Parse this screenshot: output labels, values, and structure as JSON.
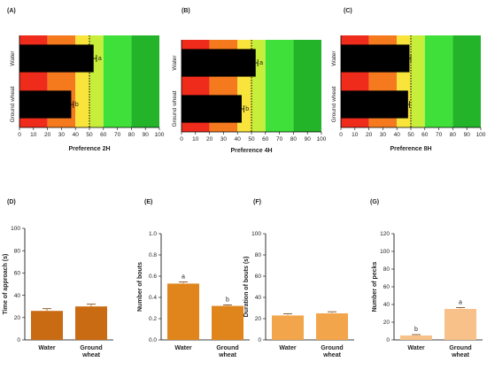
{
  "colors": {
    "pref_zones": [
      "#ef2b1b",
      "#f57a1e",
      "#f9e43b",
      "#c6ee3a",
      "#3fe03a",
      "#23b42a"
    ],
    "pref_bar": "#000000",
    "bar_D": "#c96b12",
    "bar_E": "#e0851c",
    "bar_F": "#f2a54a",
    "bar_G": "#f7c189",
    "cutoff": "#000000"
  },
  "chart_data": [
    {
      "panel": "(A)",
      "type": "bar",
      "orientation": "horizontal",
      "categories": [
        "Water",
        "Ground wheat"
      ],
      "values": [
        53,
        37
      ],
      "errors": [
        2,
        1.5
      ],
      "significance": [
        "a",
        "b"
      ],
      "xlabel": "Preference 2H",
      "xlim": [
        0,
        100
      ],
      "xticks": [
        "0",
        "10",
        "20",
        "30",
        "40",
        "50",
        "60",
        "70",
        "80",
        "90",
        "100"
      ],
      "zones": [
        0,
        20,
        40,
        50,
        60,
        80,
        100
      ],
      "cutoff_line": 50
    },
    {
      "panel": "(B)",
      "type": "bar",
      "orientation": "horizontal",
      "categories": [
        "Water",
        "Ground wheat"
      ],
      "values": [
        53,
        43
      ],
      "errors": [
        1.5,
        1.5
      ],
      "significance": [
        "a",
        "b"
      ],
      "xlabel": "Preference 4H",
      "xlim": [
        0,
        100
      ],
      "xticks": [
        "0",
        "10",
        "20",
        "30",
        "40",
        "50",
        "60",
        "70",
        "80",
        "90",
        "100"
      ],
      "zones": [
        0,
        20,
        40,
        50,
        60,
        80,
        100
      ],
      "cutoff_line": 50
    },
    {
      "panel": "(C)",
      "type": "bar",
      "orientation": "horizontal",
      "categories": [
        "Water",
        "Ground wheat"
      ],
      "values": [
        49,
        48
      ],
      "errors": [
        1,
        1
      ],
      "significance": [
        "",
        ""
      ],
      "xlabel": "Preference 8H",
      "xlim": [
        0,
        100
      ],
      "xticks": [
        "0",
        "10",
        "20",
        "30",
        "40",
        "50",
        "60",
        "70",
        "80",
        "90",
        "100"
      ],
      "zones": [
        0,
        20,
        40,
        50,
        60,
        80,
        100
      ],
      "cutoff_line": 50
    },
    {
      "panel": "(D)",
      "type": "bar",
      "categories": [
        "Water",
        "Ground\nwheat"
      ],
      "values": [
        26,
        30
      ],
      "errors": [
        2,
        2
      ],
      "significance": [
        "",
        ""
      ],
      "ylabel": "Time of approach (s)",
      "ylim": [
        0,
        100
      ],
      "yticks": [
        "0",
        "20",
        "40",
        "60",
        "80",
        "100"
      ]
    },
    {
      "panel": "(E)",
      "type": "bar",
      "categories": [
        "Water",
        "Ground\nwheat"
      ],
      "values": [
        0.53,
        0.32
      ],
      "errors": [
        0.015,
        0.01
      ],
      "significance": [
        "a",
        "b"
      ],
      "ylabel": "Number of bouts",
      "ylim": [
        0,
        1.0
      ],
      "yticks": [
        "0.0",
        "0.2",
        "0.4",
        "0.6",
        "0.8",
        "1.0"
      ]
    },
    {
      "panel": "(F)",
      "type": "bar",
      "categories": [
        "Water",
        "Ground\nwheat"
      ],
      "values": [
        23,
        25
      ],
      "errors": [
        1.5,
        1.5
      ],
      "significance": [
        "",
        ""
      ],
      "ylabel": "Duration of bouts (s)",
      "ylim": [
        0,
        100
      ],
      "yticks": [
        "0",
        "20",
        "40",
        "60",
        "80",
        "100"
      ]
    },
    {
      "panel": "(G)",
      "type": "bar",
      "categories": [
        "Water",
        "Ground\nwheat"
      ],
      "values": [
        5,
        35
      ],
      "errors": [
        1,
        1.5
      ],
      "significance": [
        "b",
        "a"
      ],
      "ylabel": "Number of pecks",
      "ylim": [
        0,
        120
      ],
      "yticks": [
        "0",
        "20",
        "40",
        "60",
        "80",
        "100",
        "120"
      ]
    }
  ]
}
